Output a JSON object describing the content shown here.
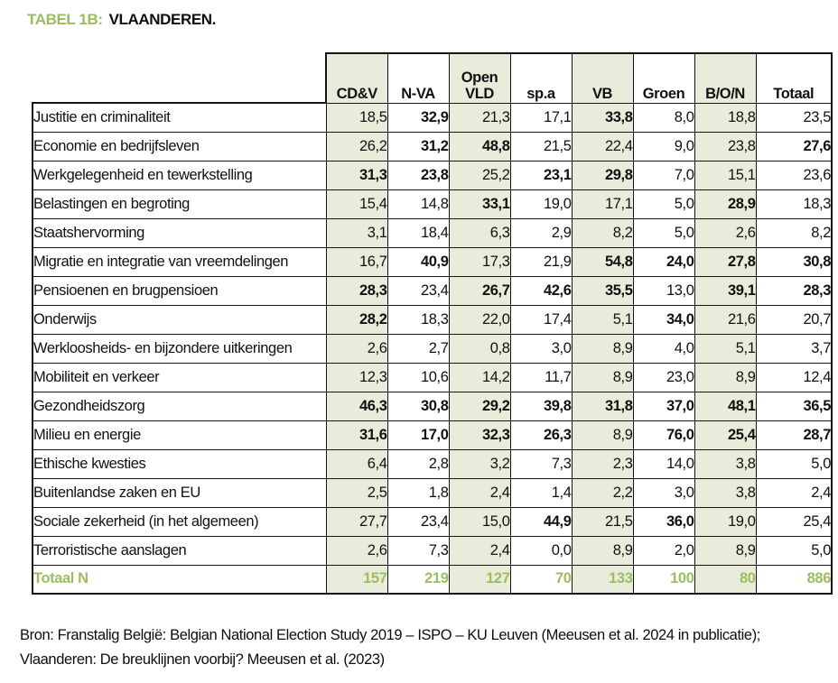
{
  "title": {
    "tag": "TABEL 1B:",
    "region": "VLAANDEREN."
  },
  "colors": {
    "accent_green": "#9cbd5f",
    "cell_shade": "#e9ecda",
    "border": "#141414",
    "text": "#111111"
  },
  "table": {
    "columns": [
      {
        "label": "CD&V",
        "shaded": true
      },
      {
        "label": "N-VA",
        "shaded": false
      },
      {
        "label": "Open VLD",
        "shaded": true
      },
      {
        "label": "sp.a",
        "shaded": false
      },
      {
        "label": "VB",
        "shaded": true
      },
      {
        "label": "Groen",
        "shaded": false
      },
      {
        "label": "B/O/N",
        "shaded": true
      },
      {
        "label": "Totaal",
        "shaded": false
      }
    ],
    "rows": [
      {
        "label": "Justitie en criminaliteit",
        "values": [
          "18,5",
          "32,9",
          "21,3",
          "17,1",
          "33,8",
          "8,0",
          "18,8",
          "23,5"
        ],
        "bold": [
          1,
          4
        ]
      },
      {
        "label": "Economie en bedrijfsleven",
        "values": [
          "26,2",
          "31,2",
          "48,8",
          "21,5",
          "22,4",
          "9,0",
          "23,8",
          "27,6"
        ],
        "bold": [
          1,
          2,
          7
        ]
      },
      {
        "label": "Werkgelegenheid en tewerkstelling",
        "values": [
          "31,3",
          "23,8",
          "25,2",
          "23,1",
          "29,8",
          "7,0",
          "15,1",
          "23,6"
        ],
        "bold": [
          0,
          1,
          3,
          4
        ]
      },
      {
        "label": "Belastingen en begroting",
        "values": [
          "15,4",
          "14,8",
          "33,1",
          "19,0",
          "17,1",
          "5,0",
          "28,9",
          "18,3"
        ],
        "bold": [
          2,
          6
        ]
      },
      {
        "label": "Staatshervorming",
        "values": [
          "3,1",
          "18,4",
          "6,3",
          "2,9",
          "8,2",
          "5,0",
          "2,6",
          "8,2"
        ],
        "bold": []
      },
      {
        "label": "Migratie en integratie van vreemdelingen",
        "values": [
          "16,7",
          "40,9",
          "17,3",
          "21,9",
          "54,8",
          "24,0",
          "27,8",
          "30,8"
        ],
        "bold": [
          1,
          4,
          5,
          6,
          7
        ]
      },
      {
        "label": "Pensioenen en brugpensioen",
        "values": [
          "28,3",
          "23,4",
          "26,7",
          "42,6",
          "35,5",
          "13,0",
          "39,1",
          "28,3"
        ],
        "bold": [
          0,
          2,
          3,
          4,
          6,
          7
        ]
      },
      {
        "label": "Onderwijs",
        "values": [
          "28,2",
          "18,3",
          "22,0",
          "17,4",
          "5,1",
          "34,0",
          "21,6",
          "20,7"
        ],
        "bold": [
          0,
          5
        ]
      },
      {
        "label": "Werkloosheids- en bijzondere uitkeringen",
        "values": [
          "2,6",
          "2,7",
          "0,8",
          "3,0",
          "8,9",
          "4,0",
          "5,1",
          "3,7"
        ],
        "bold": []
      },
      {
        "label": "Mobiliteit en verkeer",
        "values": [
          "12,3",
          "10,6",
          "14,2",
          "11,7",
          "8,9",
          "23,0",
          "8,9",
          "12,4"
        ],
        "bold": []
      },
      {
        "label": "Gezondheidszorg",
        "values": [
          "46,3",
          "30,8",
          "29,2",
          "39,8",
          "31,8",
          "37,0",
          "48,1",
          "36,5"
        ],
        "bold": [
          0,
          1,
          2,
          3,
          4,
          5,
          6,
          7
        ]
      },
      {
        "label": "Milieu en energie",
        "values": [
          "31,6",
          "17,0",
          "32,3",
          "26,3",
          "8,9",
          "76,0",
          "25,4",
          "28,7"
        ],
        "bold": [
          0,
          1,
          2,
          3,
          5,
          6,
          7
        ]
      },
      {
        "label": "Ethische kwesties",
        "values": [
          "6,4",
          "2,8",
          "3,2",
          "7,3",
          "2,3",
          "14,0",
          "3,8",
          "5,0"
        ],
        "bold": []
      },
      {
        "label": "Buitenlandse zaken en EU",
        "values": [
          "2,5",
          "1,8",
          "2,4",
          "1,4",
          "2,2",
          "3,0",
          "3,8",
          "2,4"
        ],
        "bold": []
      },
      {
        "label": "Sociale zekerheid (in het algemeen)",
        "values": [
          "27,7",
          "23,4",
          "15,0",
          "44,9",
          "21,5",
          "36,0",
          "19,0",
          "25,4"
        ],
        "bold": [
          3,
          5
        ]
      },
      {
        "label": "Terroristische aanslagen",
        "values": [
          "2,6",
          "7,3",
          "2,4",
          "0,0",
          "8,9",
          "2,0",
          "8,9",
          "5,0"
        ],
        "bold": []
      }
    ],
    "total_row": {
      "label": "Totaal N",
      "values": [
        "157",
        "219",
        "127",
        "70",
        "133",
        "100",
        "80",
        "886"
      ]
    }
  },
  "footer": {
    "lines": [
      "Bron: Franstalig België: Belgian National Election Study 2019 – ISPO – KU Leuven (Meeusen et al. 2024 in publicatie);",
      "Vlaanderen: De breuklijnen voorbij? Meeusen et al. (2023)"
    ]
  }
}
